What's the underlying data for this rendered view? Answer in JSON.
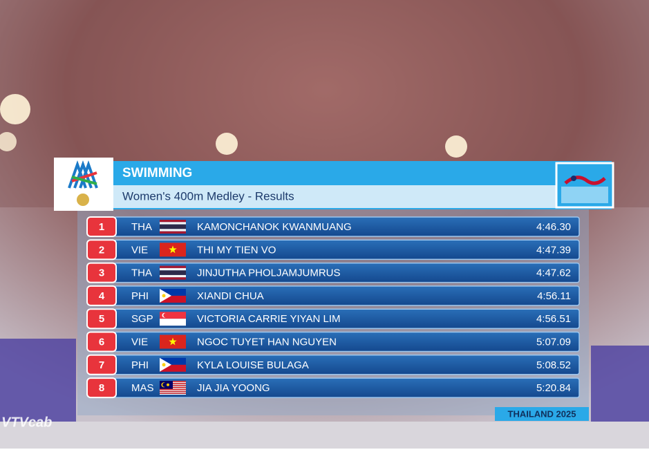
{
  "header": {
    "sport": "SWIMMING",
    "event": "Women's 400m Medley - Results"
  },
  "results": [
    {
      "rank": 1,
      "country": "THA",
      "name": "KAMONCHANOK KWANMUANG",
      "time": "4:46.30"
    },
    {
      "rank": 2,
      "country": "VIE",
      "name": "THI MY TIEN VO",
      "time": "4:47.39"
    },
    {
      "rank": 3,
      "country": "THA",
      "name": "JINJUTHA PHOLJAMJUMRUS",
      "time": "4:47.62"
    },
    {
      "rank": 4,
      "country": "PHI",
      "name": "XIANDI CHUA",
      "time": "4:56.11"
    },
    {
      "rank": 5,
      "country": "SGP",
      "name": "VICTORIA CARRIE YIYAN LIM",
      "time": "4:56.51"
    },
    {
      "rank": 6,
      "country": "VIE",
      "name": "NGOC TUYET HAN NGUYEN",
      "time": "5:07.09"
    },
    {
      "rank": 7,
      "country": "PHI",
      "name": "KYLA LOUISE BULAGA",
      "time": "5:08.52"
    },
    {
      "rank": 8,
      "country": "MAS",
      "name": "JIA JIA YOONG",
      "time": "5:20.84"
    }
  ],
  "footer": "THAILAND 2025",
  "watermark": "VTVcab"
}
